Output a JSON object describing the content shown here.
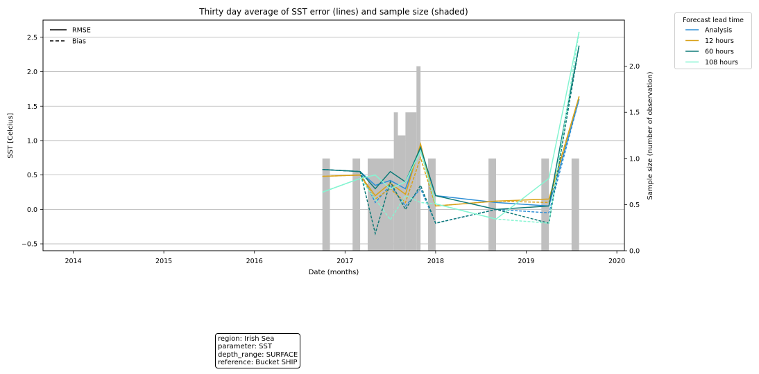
{
  "chart_data": {
    "type": "line",
    "title": "Thirty day average of SST error (lines) and sample size (shaded)",
    "xlabel": "Date (months)",
    "ylabel": "SST [Celcius]",
    "y2label": "Sample size (number of observation)",
    "xlim": [
      "2013-09-01",
      "2020-02-01"
    ],
    "ylim": [
      -0.6,
      2.75
    ],
    "y2lim": [
      0,
      2.5
    ],
    "x_ticks": [
      "2014",
      "2015",
      "2016",
      "2017",
      "2018",
      "2019",
      "2020"
    ],
    "y_ticks": [
      "−0.5",
      "0.0",
      "0.5",
      "1.0",
      "1.5",
      "2.0",
      "2.5"
    ],
    "y2_ticks": [
      "0.0",
      "0.5",
      "1.0",
      "1.5",
      "2.0"
    ],
    "grid": "horizontal",
    "style_legend": {
      "placement": "top-left",
      "entries": [
        {
          "label": "RMSE",
          "dash": "solid"
        },
        {
          "label": "Bias",
          "dash": "dashed"
        }
      ]
    },
    "series_legend": {
      "title": "Forecast lead time",
      "placement": "outside-right"
    },
    "series": [
      {
        "name": "Analysis",
        "color": "#2e8fd6",
        "rmse": [
          [
            "2016-10-01",
            0.58
          ],
          [
            "2017-03-01",
            0.55
          ],
          [
            "2017-05-01",
            0.35
          ],
          [
            "2017-07-01",
            0.42
          ],
          [
            "2017-09-01",
            0.3
          ],
          [
            "2017-11-01",
            0.9
          ],
          [
            "2018-01-01",
            0.2
          ],
          [
            "2018-09-01",
            0.1
          ],
          [
            "2019-04-01",
            0.05
          ],
          [
            "2019-08-01",
            1.6
          ]
        ],
        "bias": [
          [
            "2016-10-01",
            0.58
          ],
          [
            "2017-03-01",
            0.55
          ],
          [
            "2017-05-01",
            0.1
          ],
          [
            "2017-07-01",
            0.35
          ],
          [
            "2017-09-01",
            0.05
          ],
          [
            "2017-11-01",
            0.3
          ],
          [
            "2018-01-01",
            -0.2
          ],
          [
            "2018-09-01",
            0.0
          ],
          [
            "2019-04-01",
            -0.05
          ],
          [
            "2019-08-01",
            1.6
          ]
        ]
      },
      {
        "name": "12 hours",
        "color": "#d9a21a",
        "rmse": [
          [
            "2016-10-01",
            0.48
          ],
          [
            "2017-03-01",
            0.5
          ],
          [
            "2017-05-01",
            0.2
          ],
          [
            "2017-07-01",
            0.38
          ],
          [
            "2017-09-01",
            0.22
          ],
          [
            "2017-11-01",
            0.95
          ],
          [
            "2018-01-01",
            0.05
          ],
          [
            "2018-09-01",
            0.12
          ],
          [
            "2019-04-01",
            0.15
          ],
          [
            "2019-08-01",
            1.64
          ]
        ],
        "bias": [
          [
            "2016-10-01",
            0.48
          ],
          [
            "2017-03-01",
            0.5
          ],
          [
            "2017-05-01",
            0.15
          ],
          [
            "2017-07-01",
            0.3
          ],
          [
            "2017-09-01",
            0.1
          ],
          [
            "2017-11-01",
            0.75
          ],
          [
            "2018-01-01",
            0.05
          ],
          [
            "2018-09-01",
            0.12
          ],
          [
            "2019-04-01",
            0.1
          ],
          [
            "2019-08-01",
            1.64
          ]
        ]
      },
      {
        "name": "60 hours",
        "color": "#0f7a78",
        "rmse": [
          [
            "2016-10-01",
            0.58
          ],
          [
            "2017-03-01",
            0.55
          ],
          [
            "2017-05-01",
            0.3
          ],
          [
            "2017-07-01",
            0.55
          ],
          [
            "2017-09-01",
            0.4
          ],
          [
            "2017-11-01",
            0.9
          ],
          [
            "2018-01-01",
            0.2
          ],
          [
            "2018-09-01",
            0.0
          ],
          [
            "2019-04-01",
            0.05
          ],
          [
            "2019-08-01",
            2.38
          ]
        ],
        "bias": [
          [
            "2016-10-01",
            0.58
          ],
          [
            "2017-03-01",
            0.55
          ],
          [
            "2017-05-01",
            -0.35
          ],
          [
            "2017-07-01",
            0.4
          ],
          [
            "2017-09-01",
            0.0
          ],
          [
            "2017-11-01",
            0.35
          ],
          [
            "2018-01-01",
            -0.2
          ],
          [
            "2018-09-01",
            0.0
          ],
          [
            "2019-04-01",
            -0.2
          ],
          [
            "2019-08-01",
            2.38
          ]
        ]
      },
      {
        "name": "108 hours",
        "color": "#86f5d2",
        "rmse": [
          [
            "2016-10-01",
            0.25
          ],
          [
            "2017-03-01",
            0.45
          ],
          [
            "2017-05-01",
            0.5
          ],
          [
            "2017-07-01",
            0.3
          ],
          [
            "2017-09-01",
            0.4
          ],
          [
            "2017-11-01",
            0.85
          ],
          [
            "2018-01-01",
            0.08
          ],
          [
            "2018-09-01",
            -0.14
          ],
          [
            "2019-04-01",
            0.45
          ],
          [
            "2019-08-01",
            2.58
          ]
        ],
        "bias": [
          [
            "2016-10-01",
            0.25
          ],
          [
            "2017-03-01",
            0.45
          ],
          [
            "2017-05-01",
            0.15
          ],
          [
            "2017-07-01",
            -0.15
          ],
          [
            "2017-09-01",
            0.2
          ],
          [
            "2017-11-01",
            0.1
          ],
          [
            "2018-01-01",
            0.08
          ],
          [
            "2018-09-01",
            -0.14
          ],
          [
            "2019-04-01",
            -0.2
          ],
          [
            "2019-08-01",
            2.58
          ]
        ]
      }
    ],
    "sample_size": [
      {
        "start": "2016-10-01",
        "end": "2016-11-01",
        "value": 1
      },
      {
        "start": "2017-02-01",
        "end": "2017-03-01",
        "value": 1
      },
      {
        "start": "2017-04-01",
        "end": "2017-07-15",
        "value": 1
      },
      {
        "start": "2017-07-15",
        "end": "2017-08-01",
        "value": 1.5
      },
      {
        "start": "2017-08-01",
        "end": "2017-09-01",
        "value": 1.25
      },
      {
        "start": "2017-09-01",
        "end": "2017-10-15",
        "value": 1.5
      },
      {
        "start": "2017-10-15",
        "end": "2017-11-01",
        "value": 2.0
      },
      {
        "start": "2017-12-01",
        "end": "2018-01-01",
        "value": 1
      },
      {
        "start": "2018-08-01",
        "end": "2018-09-01",
        "value": 1
      },
      {
        "start": "2019-03-01",
        "end": "2019-04-01",
        "value": 1
      },
      {
        "start": "2019-07-01",
        "end": "2019-08-01",
        "value": 1
      }
    ]
  },
  "info_box": {
    "text": "region: Irish Sea\nparameter: SST\ndepth_range: SURFACE\nreference: Bucket SHIP"
  },
  "colors": {
    "bars": "#bfbfbf",
    "grid": "#b0b0b0"
  }
}
